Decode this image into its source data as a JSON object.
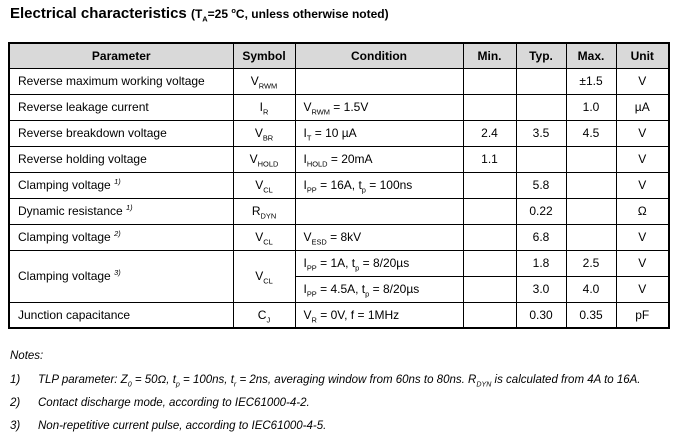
{
  "header": {
    "title": "Electrical characteristics ",
    "condition": "(T~A~=25 ^o^C, unless otherwise noted)"
  },
  "table": {
    "headers": [
      "Parameter",
      "Symbol",
      "Condition",
      "Min.",
      "Typ.",
      "Max.",
      "Unit"
    ],
    "rows": [
      {
        "parameter": "Reverse maximum working voltage",
        "symbol": "V~RWM~",
        "condition": "",
        "min": "",
        "typ": "",
        "max": "±1.5",
        "unit": "V"
      },
      {
        "parameter": "Reverse leakage current",
        "symbol": "I~R~",
        "condition": "V~RWM~ = 1.5V",
        "min": "",
        "typ": "",
        "max": "1.0",
        "unit": "µA"
      },
      {
        "parameter": "Reverse breakdown voltage",
        "symbol": "V~BR~",
        "condition": "I~T~ = 10 µA",
        "min": "2.4",
        "typ": "3.5",
        "max": "4.5",
        "unit": "V"
      },
      {
        "parameter": "Reverse holding voltage",
        "symbol": "V~HOLD~",
        "condition": "I~HOLD~ = 20mA",
        "min": "1.1",
        "typ": "",
        "max": "",
        "unit": "V"
      },
      {
        "parameter": "Clamping voltage ^1)^",
        "symbol": "V~CL~",
        "condition": "I~PP~ = 16A, t~p~ = 100ns",
        "min": "",
        "typ": "5.8",
        "max": "",
        "unit": "V"
      },
      {
        "parameter": "Dynamic resistance ^1)^",
        "symbol": "R~DYN~",
        "condition": "",
        "min": "",
        "typ": "0.22",
        "max": "",
        "unit": "Ω"
      },
      {
        "parameter": "Clamping voltage ^2)^",
        "symbol": "V~CL~",
        "condition": "V~ESD~ = 8kV",
        "min": "",
        "typ": "6.8",
        "max": "",
        "unit": "V"
      },
      {
        "parameter": "Clamping voltage ^3)^",
        "symbol": "V~CL~",
        "condition": "I~PP~ = 1A, t~p~ = 8/20µs",
        "min": "",
        "typ": "1.8",
        "max": "2.5",
        "unit": "V"
      },
      {
        "parameter": "",
        "symbol": "",
        "condition": "I~PP~ = 4.5A, t~p~ = 8/20µs",
        "min": "",
        "typ": "3.0",
        "max": "4.0",
        "unit": "V"
      },
      {
        "parameter": "Junction capacitance",
        "symbol": "C~J~",
        "condition": "V~R~ = 0V, f = 1MHz",
        "min": "",
        "typ": "0.30",
        "max": "0.35",
        "unit": "pF"
      }
    ]
  },
  "notes": {
    "label": "Notes:",
    "items": [
      {
        "num": "1)",
        "text": "TLP parameter: Z~0~ = 50Ω, t~p~ = 100ns, t~r~ = 2ns, averaging window from 60ns to 80ns. R~DYN~ is calculated from 4A to 16A."
      },
      {
        "num": "2)",
        "text": "Contact discharge mode, according to IEC61000-4-2."
      },
      {
        "num": "3)",
        "text": "Non-repetitive current pulse, according to IEC61000-4-5."
      }
    ]
  },
  "colors": {
    "header_bg": "#d9d9d9",
    "border": "#000000",
    "text": "#000000",
    "background": "#ffffff"
  }
}
